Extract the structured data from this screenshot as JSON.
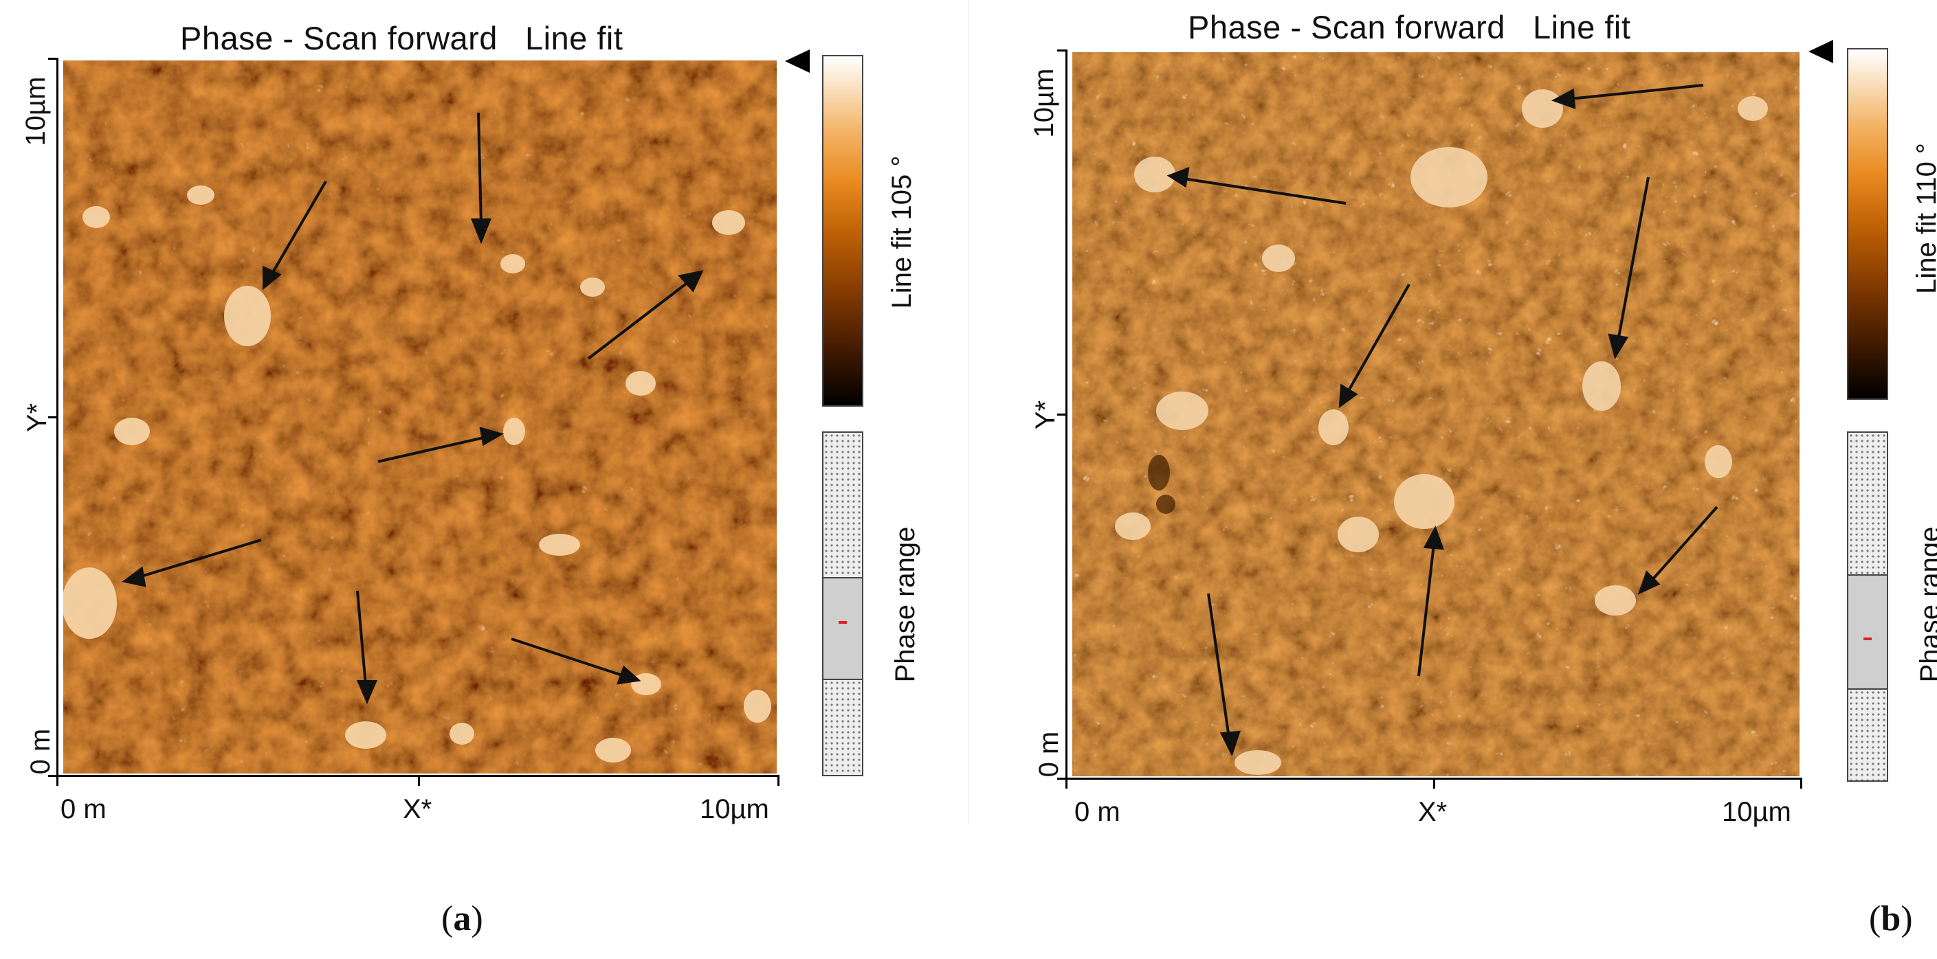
{
  "panels": [
    {
      "id": "a",
      "title": "Phase - Scan forward",
      "title_mode": "Line fit",
      "x_axis": {
        "min_label": "0 m",
        "mid_label": "X*",
        "max_label": "10µm"
      },
      "y_axis": {
        "min_label": "0 m",
        "mid_label": "Y*",
        "max_label": "10µm"
      },
      "colorbar_label": "Line fit 105 °",
      "range_label": "Phase range",
      "range_fraction": 0.44,
      "caption_letter": "a"
    },
    {
      "id": "b",
      "title": "Phase - Scan forward",
      "title_mode": "Line fit",
      "x_axis": {
        "min_label": "0 m",
        "mid_label": "X*",
        "max_label": "10µm"
      },
      "y_axis": {
        "min_label": "0 m",
        "mid_label": "Y*",
        "max_label": "10µm"
      },
      "colorbar_label": "Line fit 110 °",
      "range_label": "Phase range",
      "range_fraction": 0.56,
      "caption_letter": "b"
    }
  ],
  "colors": {
    "scan_base": "#c8711c",
    "scan_dark": "#5a2a04",
    "scan_light": "#f6d7ad",
    "arrow": "#111111",
    "range_marker": "#e02020"
  }
}
